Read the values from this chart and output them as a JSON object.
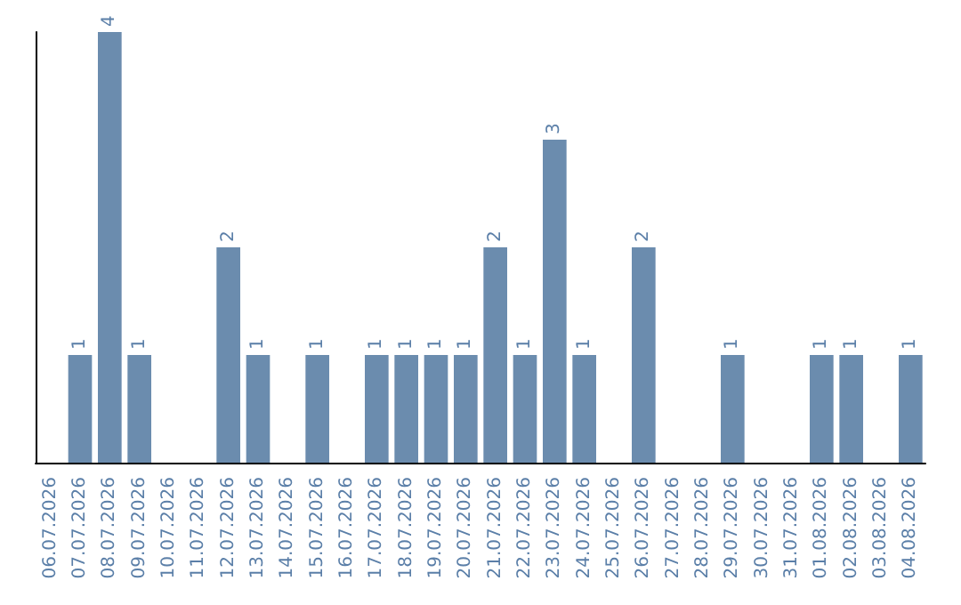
{
  "chart_data": {
    "type": "bar",
    "categories": [
      "06.07.2026",
      "07.07.2026",
      "08.07.2026",
      "09.07.2026",
      "10.07.2026",
      "11.07.2026",
      "12.07.2026",
      "13.07.2026",
      "14.07.2026",
      "15.07.2026",
      "16.07.2026",
      "17.07.2026",
      "18.07.2026",
      "19.07.2026",
      "20.07.2026",
      "21.07.2026",
      "22.07.2026",
      "23.07.2026",
      "24.07.2026",
      "25.07.2026",
      "26.07.2026",
      "27.07.2026",
      "28.07.2026",
      "29.07.2026",
      "30.07.2026",
      "31.07.2026",
      "01.08.2026",
      "02.08.2026",
      "03.08.2026",
      "04.08.2026"
    ],
    "values": [
      0,
      1,
      4,
      1,
      0,
      0,
      2,
      1,
      0,
      1,
      0,
      1,
      1,
      1,
      1,
      2,
      1,
      3,
      1,
      0,
      2,
      0,
      0,
      1,
      0,
      0,
      1,
      1,
      0,
      1
    ],
    "value_labels": [
      null,
      "1",
      "4",
      "1",
      null,
      null,
      "2",
      "1",
      null,
      "1",
      null,
      "1",
      "1",
      "1",
      "1",
      "2",
      "1",
      "3",
      "1",
      null,
      "2",
      null,
      null,
      "1",
      null,
      null,
      "1",
      "1",
      null,
      "1"
    ],
    "color": "#6b8cae",
    "tick_labels": "x"
  }
}
